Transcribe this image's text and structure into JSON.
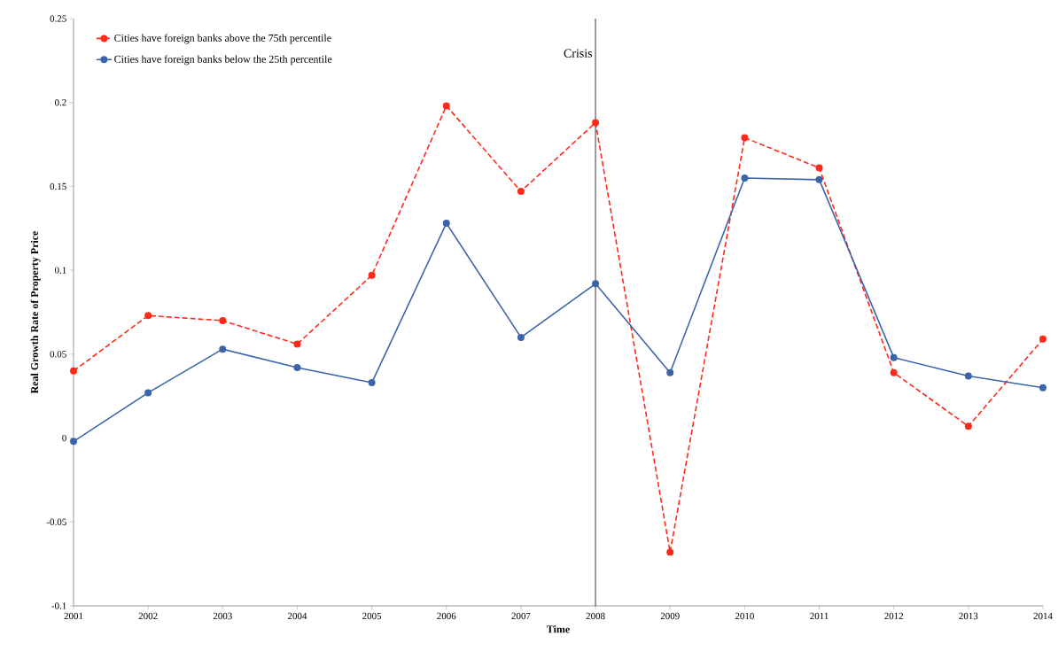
{
  "chart_data": {
    "type": "line",
    "xlabel": "Time",
    "ylabel": "Real Growth  Rate of Property  Price",
    "x": [
      2001,
      2002,
      2003,
      2004,
      2005,
      2006,
      2007,
      2008,
      2009,
      2010,
      2011,
      2012,
      2013,
      2014
    ],
    "series": [
      {
        "name": "Cities have foreign banks above the 75th percentile",
        "color": "#ff2a1a",
        "line_style": "dashed",
        "values": [
          0.04,
          0.073,
          0.07,
          0.056,
          0.097,
          0.198,
          0.147,
          0.188,
          -0.068,
          0.179,
          0.161,
          0.039,
          0.007,
          0.059
        ]
      },
      {
        "name": "Cities have foreign banks below the 25th percentile",
        "color": "#3c64a8",
        "line_style": "solid",
        "values": [
          -0.002,
          0.027,
          0.053,
          0.042,
          0.033,
          0.128,
          0.06,
          0.092,
          0.039,
          0.155,
          0.154,
          0.048,
          0.037,
          0.03
        ]
      }
    ],
    "xlim": [
      2001,
      2014
    ],
    "xticks": [
      2001,
      2002,
      2003,
      2004,
      2005,
      2006,
      2007,
      2008,
      2009,
      2010,
      2011,
      2012,
      2013,
      2014
    ],
    "ylim": [
      -0.1,
      0.25
    ],
    "yticks": [
      -0.1,
      -0.05,
      0,
      0.05,
      0.1,
      0.15,
      0.2,
      0.25
    ],
    "ref_lines": [
      {
        "axis": "x",
        "value": 2008,
        "label": "Crisis",
        "color": "#000000"
      }
    ],
    "grid": false,
    "legend": "top left",
    "marker": "circle"
  }
}
